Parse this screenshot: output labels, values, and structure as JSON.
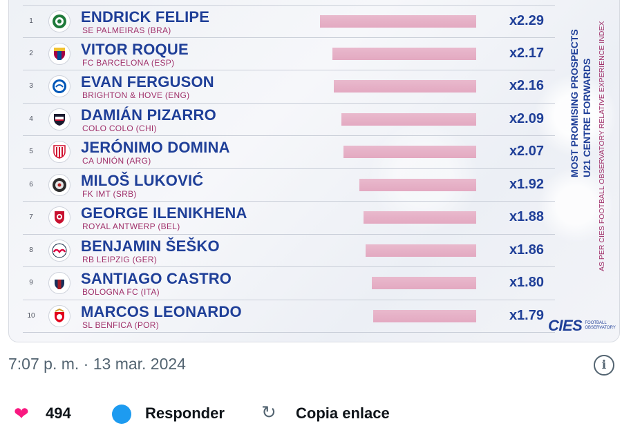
{
  "ranking": {
    "title_line1": "MOST PROMISING PROSPECTS",
    "title_line2": "U21 CENTRE FORWARDS",
    "subtitle": "AS PER CIES FOOTBALL OBSERVATORY RELATIVE EXPERIENCE INDEX",
    "brand": "CIES",
    "brand_sub": "FOOTBALL OBSERVATORY",
    "bar_color": "#e6b0c7",
    "name_color": "#1f3f98",
    "club_color": "#a0306a",
    "players": [
      {
        "rank": "1",
        "name": "ENDRICK FELIPE",
        "club": "SE PALMEIRAS (BRA)",
        "value": "x2.29",
        "index": 2.29,
        "crest": "palmeiras-crest-icon"
      },
      {
        "rank": "2",
        "name": "VITOR ROQUE",
        "club": "FC BARCELONA (ESP)",
        "value": "x2.17",
        "index": 2.17,
        "crest": "barcelona-crest-icon"
      },
      {
        "rank": "3",
        "name": "EVAN FERGUSON",
        "club": "BRIGHTON & HOVE (ENG)",
        "value": "x2.16",
        "index": 2.16,
        "crest": "brighton-crest-icon"
      },
      {
        "rank": "4",
        "name": "DAMIÁN PIZARRO",
        "club": "COLO COLO (CHI)",
        "value": "x2.09",
        "index": 2.09,
        "crest": "colocolo-crest-icon"
      },
      {
        "rank": "5",
        "name": "JERÓNIMO DOMINA",
        "club": "CA UNIÓN (ARG)",
        "value": "x2.07",
        "index": 2.07,
        "crest": "union-crest-icon"
      },
      {
        "rank": "6",
        "name": "MILOŠ LUKOVIĆ",
        "club": "FK IMT (SRB)",
        "value": "x1.92",
        "index": 1.92,
        "crest": "imt-crest-icon"
      },
      {
        "rank": "7",
        "name": "GEORGE ILENIKHENA",
        "club": "ROYAL ANTWERP (BEL)",
        "value": "x1.88",
        "index": 1.88,
        "crest": "antwerp-crest-icon"
      },
      {
        "rank": "8",
        "name": "BENJAMIN ŠEŠKO",
        "club": "RB LEIPZIG (GER)",
        "value": "x1.86",
        "index": 1.86,
        "crest": "leipzig-crest-icon"
      },
      {
        "rank": "9",
        "name": "SANTIAGO CASTRO",
        "club": "BOLOGNA FC (ITA)",
        "value": "x1.80",
        "index": 1.8,
        "crest": "bologna-crest-icon"
      },
      {
        "rank": "10",
        "name": "MARCOS LEONARDO",
        "club": "SL BENFICA (POR)",
        "value": "x1.79",
        "index": 1.79,
        "crest": "benfica-crest-icon"
      }
    ]
  },
  "tweet": {
    "timestamp": "7:07 p. m. · 13 mar. 2024",
    "likes": "494",
    "reply_label": "Responder",
    "copy_link_label": "Copia enlace",
    "like_color": "#f91880",
    "reply_color": "#1d9bf0"
  }
}
